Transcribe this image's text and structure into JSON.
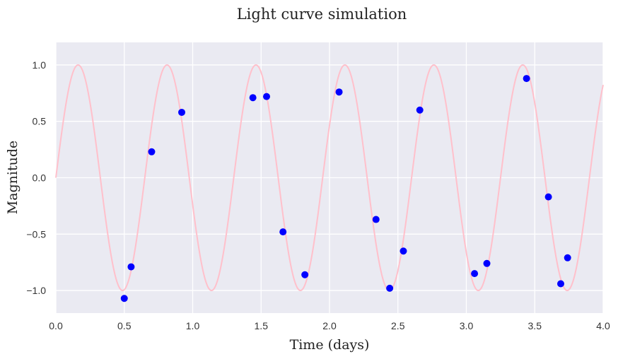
{
  "chart_data": {
    "type": "scatter",
    "title": "Light curve simulation",
    "xlabel": "Time (days)",
    "ylabel": "Magnitude",
    "xlim": [
      0,
      4
    ],
    "ylim": [
      -1.2,
      1.2
    ],
    "grid": true,
    "background_color": "#eaeaf2",
    "xticks": [
      0.0,
      0.5,
      1.0,
      1.5,
      2.0,
      2.5,
      3.0,
      3.5,
      4.0
    ],
    "xtick_labels": [
      "0.0",
      "0.5",
      "1.0",
      "1.5",
      "2.0",
      "2.5",
      "3.0",
      "3.5",
      "4.0"
    ],
    "yticks": [
      1.0,
      0.5,
      0.0,
      -0.5,
      -1.0
    ],
    "ytick_labels": [
      "1.0",
      "0.5",
      "0.0",
      "−0.5",
      "−1.0"
    ],
    "model_curve": {
      "type": "line",
      "function": "sin(2*pi*t/period)",
      "period": 0.65,
      "amplitude": 1.0,
      "color": "#ffc0cb"
    },
    "series": [
      {
        "type": "scatter",
        "color": "#0000ff",
        "points": [
          {
            "x": 0.5,
            "y": -1.07
          },
          {
            "x": 0.55,
            "y": -0.79
          },
          {
            "x": 0.7,
            "y": 0.23
          },
          {
            "x": 0.92,
            "y": 0.58
          },
          {
            "x": 1.44,
            "y": 0.71
          },
          {
            "x": 1.54,
            "y": 0.72
          },
          {
            "x": 1.66,
            "y": -0.48
          },
          {
            "x": 1.82,
            "y": -0.86
          },
          {
            "x": 2.07,
            "y": 0.76
          },
          {
            "x": 2.34,
            "y": -0.37
          },
          {
            "x": 2.44,
            "y": -0.98
          },
          {
            "x": 2.54,
            "y": -0.65
          },
          {
            "x": 2.66,
            "y": 0.6
          },
          {
            "x": 3.06,
            "y": -0.85
          },
          {
            "x": 3.15,
            "y": -0.76
          },
          {
            "x": 3.44,
            "y": 0.88
          },
          {
            "x": 3.6,
            "y": -0.17
          },
          {
            "x": 3.69,
            "y": -0.94
          },
          {
            "x": 3.74,
            "y": -0.71
          }
        ]
      }
    ]
  }
}
